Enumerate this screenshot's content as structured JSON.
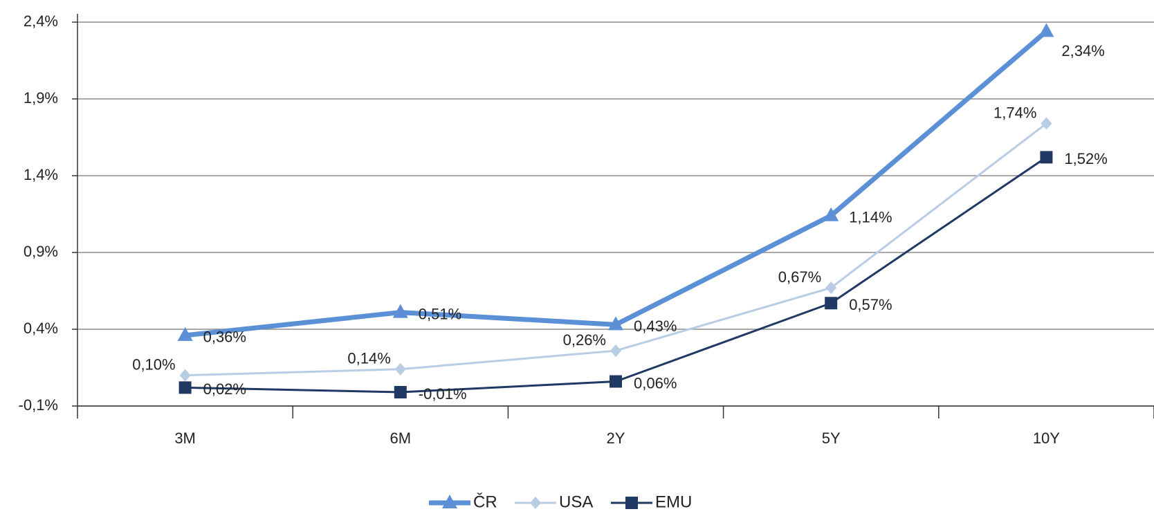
{
  "chart_data": {
    "type": "line",
    "categories": [
      "3M",
      "6M",
      "2Y",
      "5Y",
      "10Y"
    ],
    "series": [
      {
        "name": "ČR",
        "color": "#5b8fd6",
        "values": [
          0.36,
          0.51,
          0.43,
          1.14,
          2.34
        ],
        "value_labels": [
          "0,36%",
          "0,51%",
          "0,43%",
          "1,14%",
          "2,34%"
        ]
      },
      {
        "name": "USA",
        "color": "#b8cce4",
        "values": [
          0.1,
          0.14,
          0.26,
          0.67,
          1.74
        ],
        "value_labels": [
          "0,10%",
          "0,14%",
          "0,26%",
          "0,67%",
          "1,74%"
        ]
      },
      {
        "name": "EMU",
        "color": "#1f3864",
        "values": [
          0.02,
          -0.01,
          0.06,
          0.57,
          1.52
        ],
        "value_labels": [
          "0,02%",
          "-0,01%",
          "0,06%",
          "0,57%",
          "1,52%"
        ]
      }
    ],
    "ylim": [
      -0.1,
      2.4
    ],
    "yticks": [
      {
        "value": -0.1,
        "label": "-0,1%"
      },
      {
        "value": 0.4,
        "label": "0,4%"
      },
      {
        "value": 0.9,
        "label": "0,9%"
      },
      {
        "value": 1.4,
        "label": "1,4%"
      },
      {
        "value": 1.9,
        "label": "1,9%"
      },
      {
        "value": 2.4,
        "label": "2,4%"
      }
    ],
    "grid": true
  }
}
